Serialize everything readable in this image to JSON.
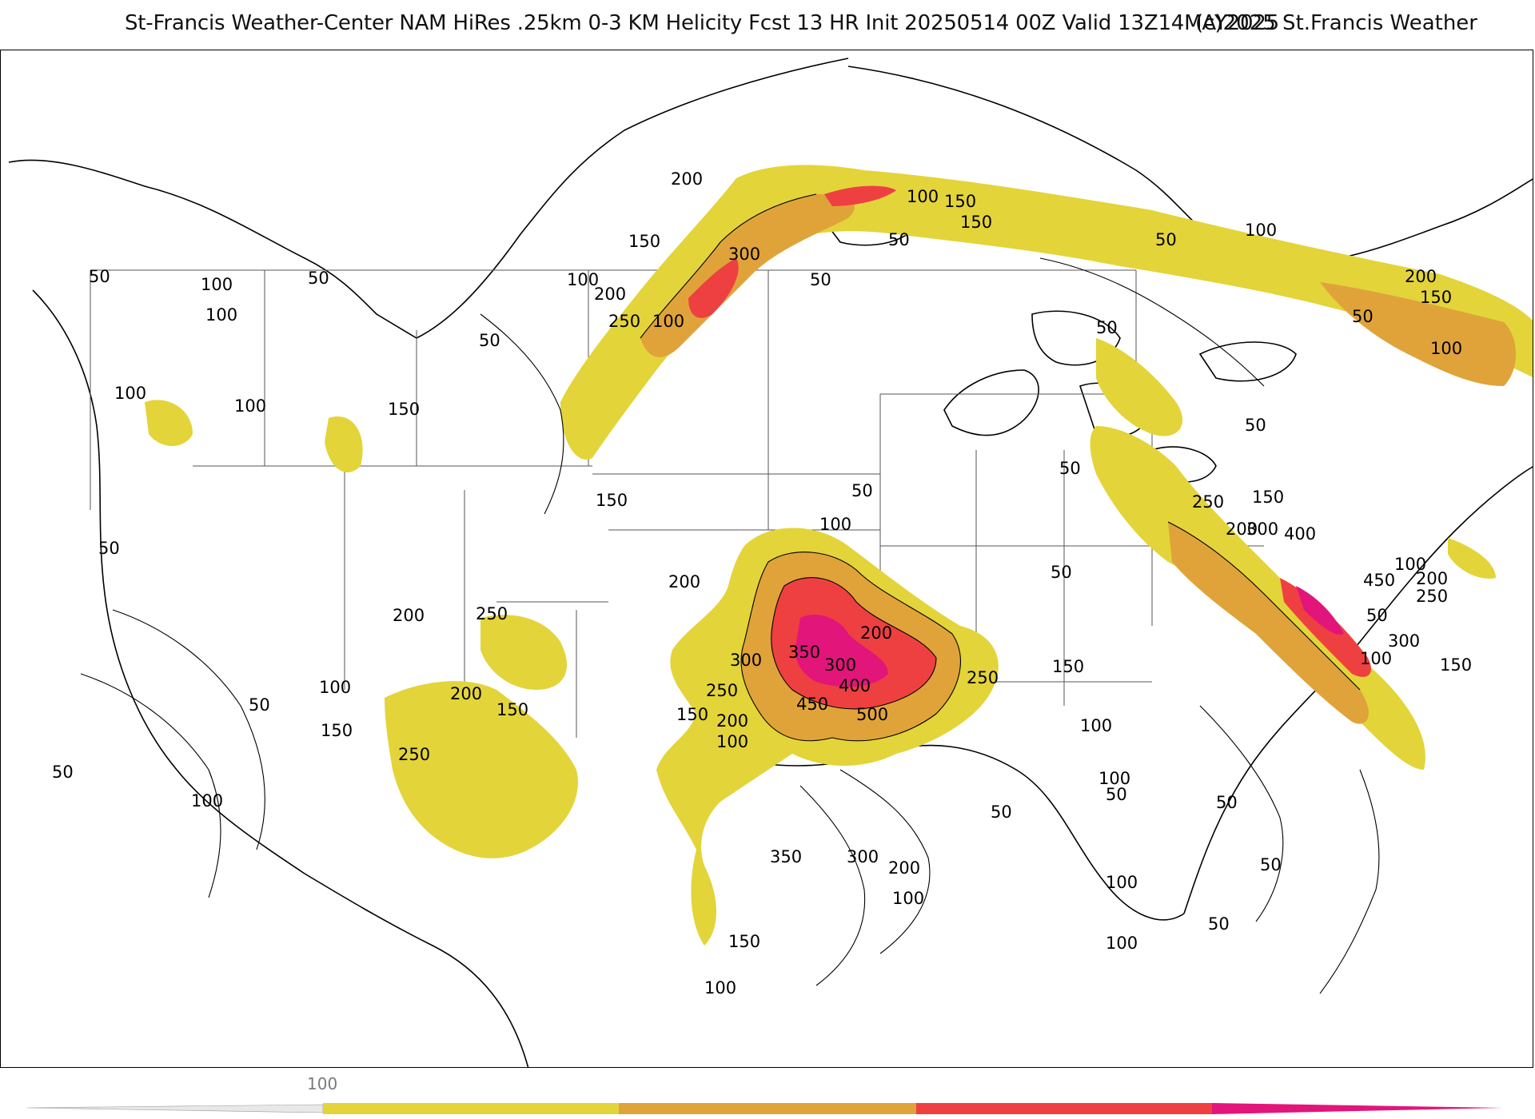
{
  "header": {
    "title": "St-Francis Weather-Center NAM HiRes .25km 0-3 KM Helicity Fcst 13 HR Init 20250514 00Z  Valid 13Z14MAY2025",
    "copyright": "(c)2025 St.Francis Weather"
  },
  "legend": {
    "tick_label": "100",
    "colors": [
      "#e3d43a",
      "#e0a33a",
      "#ee4040",
      "#e2157a"
    ]
  },
  "colors": {
    "level_100": "#e3d43a",
    "level_200": "#e0a33a",
    "level_300": "#ee4040",
    "level_400": "#e2157a",
    "outline": "#000000"
  },
  "contour_labels": [
    {
      "id": "tx",
      "values": [
        "350",
        "300",
        "400",
        "450",
        "500",
        "200",
        "250",
        "300",
        "250",
        "200",
        "100",
        "150",
        "350",
        "300",
        "200",
        "100",
        "150",
        "100"
      ]
    },
    {
      "id": "east",
      "values": [
        "400",
        "300",
        "250",
        "200",
        "150",
        "450",
        "250",
        "200",
        "300",
        "150",
        "100",
        "50",
        "100"
      ]
    },
    {
      "id": "north",
      "values": [
        "200",
        "300",
        "250",
        "200",
        "150",
        "100",
        "100",
        "150",
        "150",
        "100",
        "200",
        "150",
        "100",
        "50",
        "50"
      ]
    },
    {
      "id": "west",
      "values": [
        "200",
        "250",
        "200",
        "150",
        "250",
        "100",
        "50",
        "150",
        "100",
        "50",
        "50",
        "100",
        "150"
      ]
    },
    {
      "id": "misc",
      "values": [
        "50",
        "100",
        "50",
        "100",
        "50",
        "100",
        "50",
        "50",
        "100",
        "150",
        "200",
        "50",
        "100",
        "50",
        "50",
        "50",
        "50",
        "100",
        "100",
        "50",
        "50",
        "50",
        "150",
        "100",
        "50",
        "100",
        "50"
      ]
    }
  ]
}
